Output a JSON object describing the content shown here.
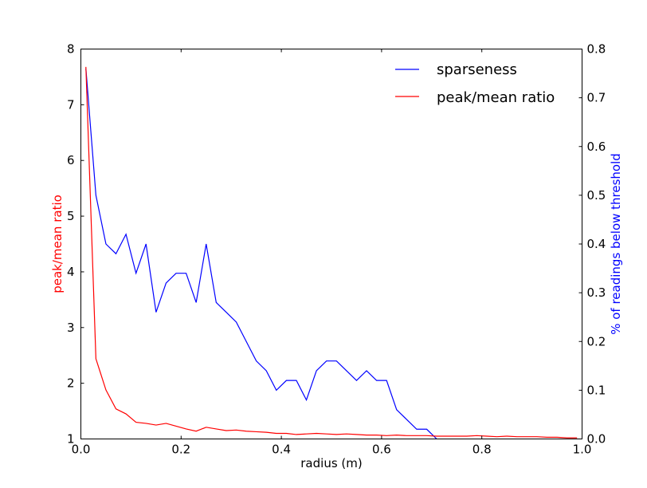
{
  "chart_data": {
    "type": "line",
    "xlabel": "radius (m)",
    "ylabel_left": "peak/mean ratio",
    "ylabel_right": "% of readings below threshold",
    "xlim": [
      0.0,
      1.0
    ],
    "ylim_left": [
      1,
      8
    ],
    "ylim_right": [
      0.0,
      0.8
    ],
    "xticks": [
      "0.0",
      "0.2",
      "0.4",
      "0.6",
      "0.8",
      "1.0"
    ],
    "yticks_left": [
      "1",
      "2",
      "3",
      "4",
      "5",
      "6",
      "7",
      "8"
    ],
    "yticks_right": [
      "0.0",
      "0.1",
      "0.2",
      "0.3",
      "0.4",
      "0.5",
      "0.6",
      "0.7",
      "0.8"
    ],
    "grid": false,
    "legend_position": "top-right",
    "series": [
      {
        "name": "sparseness",
        "axis": "right",
        "color": "#0000ff",
        "x": [
          0.01,
          0.03,
          0.05,
          0.07,
          0.09,
          0.11,
          0.13,
          0.15,
          0.17,
          0.19,
          0.21,
          0.23,
          0.25,
          0.27,
          0.29,
          0.31,
          0.33,
          0.35,
          0.37,
          0.39,
          0.41,
          0.43,
          0.45,
          0.47,
          0.49,
          0.51,
          0.53,
          0.55,
          0.57,
          0.59,
          0.61,
          0.63,
          0.65,
          0.67,
          0.69,
          0.71,
          0.73,
          0.75,
          0.77,
          0.79,
          0.81,
          0.83,
          0.85,
          0.87,
          0.89,
          0.91,
          0.93,
          0.95,
          0.97,
          0.99
        ],
        "values": [
          0.76,
          0.5,
          0.4,
          0.38,
          0.42,
          0.34,
          0.4,
          0.26,
          0.32,
          0.34,
          0.34,
          0.28,
          0.4,
          0.28,
          0.26,
          0.24,
          0.2,
          0.16,
          0.14,
          0.1,
          0.12,
          0.12,
          0.08,
          0.14,
          0.16,
          0.16,
          0.14,
          0.12,
          0.14,
          0.12,
          0.12,
          0.06,
          0.04,
          0.02,
          0.02,
          0.0,
          -0.02,
          -0.02,
          -0.02,
          -0.02,
          -0.02,
          -0.02,
          -0.02,
          -0.02,
          -0.02,
          -0.02,
          -0.02,
          -0.02,
          -0.02,
          -0.02
        ]
      },
      {
        "name": "peak/mean ratio",
        "axis": "left",
        "color": "#ff0000",
        "x": [
          0.01,
          0.03,
          0.05,
          0.07,
          0.09,
          0.11,
          0.13,
          0.15,
          0.17,
          0.19,
          0.21,
          0.23,
          0.25,
          0.27,
          0.29,
          0.31,
          0.33,
          0.35,
          0.37,
          0.39,
          0.41,
          0.43,
          0.45,
          0.47,
          0.49,
          0.51,
          0.53,
          0.55,
          0.57,
          0.59,
          0.61,
          0.63,
          0.65,
          0.67,
          0.69,
          0.71,
          0.73,
          0.75,
          0.77,
          0.79,
          0.81,
          0.83,
          0.85,
          0.87,
          0.89,
          0.91,
          0.93,
          0.95,
          0.97,
          0.99
        ],
        "values": [
          7.68,
          2.44,
          1.88,
          1.54,
          1.45,
          1.3,
          1.28,
          1.25,
          1.28,
          1.23,
          1.18,
          1.14,
          1.21,
          1.18,
          1.15,
          1.16,
          1.14,
          1.13,
          1.12,
          1.1,
          1.1,
          1.08,
          1.09,
          1.1,
          1.09,
          1.08,
          1.09,
          1.08,
          1.07,
          1.07,
          1.06,
          1.07,
          1.06,
          1.06,
          1.06,
          1.05,
          1.05,
          1.05,
          1.05,
          1.06,
          1.05,
          1.04,
          1.05,
          1.04,
          1.04,
          1.04,
          1.03,
          1.03,
          1.02,
          1.02
        ]
      }
    ]
  }
}
